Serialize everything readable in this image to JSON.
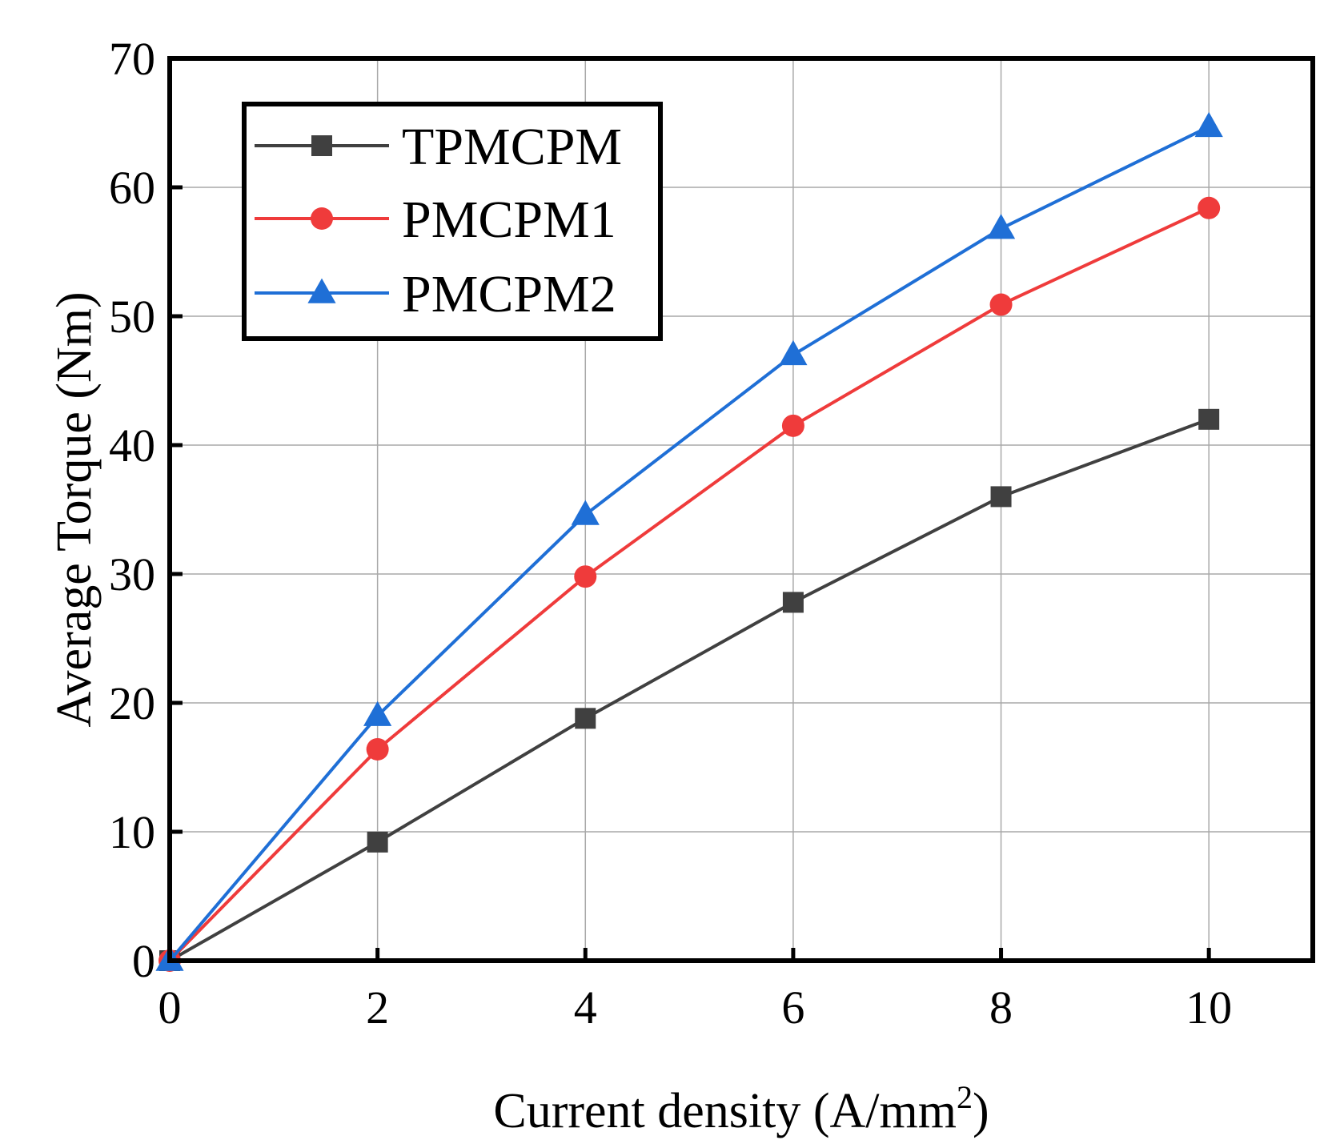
{
  "chart_data": {
    "type": "line",
    "title": "",
    "xlabel": "Current density (A/mm",
    "xlabel_sup": "2",
    "xlabel_close": ")",
    "ylabel": "Average Torque (Nm)",
    "xlim": [
      0,
      11
    ],
    "ylim": [
      0,
      70
    ],
    "xticks": [
      0,
      2,
      4,
      6,
      8,
      10
    ],
    "yticks": [
      0,
      10,
      20,
      30,
      40,
      50,
      60,
      70
    ],
    "grid": true,
    "legend_position": "top-left",
    "series": [
      {
        "name": "TPMCPM",
        "color": "#404040",
        "marker": "square",
        "x": [
          0,
          2,
          4,
          6,
          8,
          10
        ],
        "y": [
          0,
          9.2,
          18.8,
          27.8,
          36.0,
          42.0
        ]
      },
      {
        "name": "PMCPM1",
        "color": "#ef3b3b",
        "marker": "circle",
        "x": [
          0,
          2,
          4,
          6,
          8,
          10
        ],
        "y": [
          0,
          16.4,
          29.8,
          41.5,
          50.9,
          58.4
        ]
      },
      {
        "name": "PMCPM2",
        "color": "#1f6fd6",
        "marker": "triangle",
        "x": [
          0,
          2,
          4,
          6,
          8,
          10
        ],
        "y": [
          0,
          19.0,
          34.6,
          47.0,
          56.8,
          64.7
        ]
      }
    ]
  }
}
